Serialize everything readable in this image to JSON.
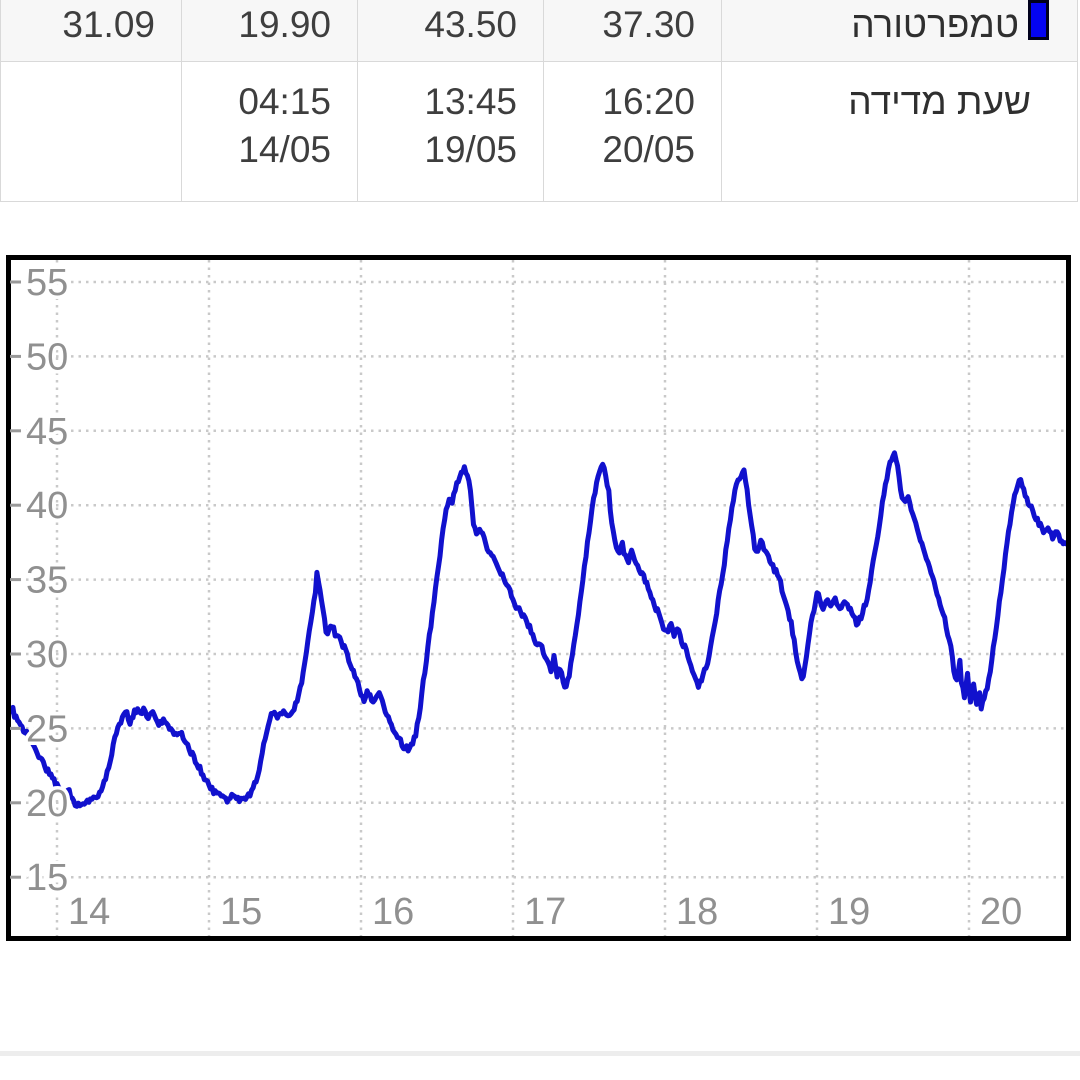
{
  "table": {
    "temperature_row": {
      "label": "טמפרטורה",
      "legend_color": "#0404f2",
      "values": [
        "31.09",
        "19.90",
        "43.50",
        "37.30"
      ]
    },
    "time_row": {
      "label": "שעת מדידה",
      "entries": [
        {
          "time": "",
          "date": ""
        },
        {
          "time": "04:15",
          "date": "14/05"
        },
        {
          "time": "13:45",
          "date": "19/05"
        },
        {
          "time": "16:20",
          "date": "20/05"
        }
      ]
    }
  },
  "chart_data": {
    "type": "line",
    "title": "",
    "xlabel": "",
    "ylabel": "",
    "x_axis": {
      "ticks": [
        14,
        15,
        16,
        17,
        18,
        19,
        20
      ],
      "unit": "day of May",
      "domain": [
        13.67,
        20.66
      ]
    },
    "y_axis": {
      "ticks": [
        15,
        20,
        25,
        30,
        35,
        40,
        45,
        50,
        55
      ],
      "domain": [
        11.0,
        56.6
      ]
    },
    "grid": "dotted",
    "grid_color": "#c9c9c9",
    "axis_label_color": "#909090",
    "border_color": "#000000",
    "series": [
      {
        "name": "טמפרטורה",
        "color": "#1111cd",
        "width": 5,
        "noise": 0.2,
        "points": [
          [
            13.68,
            25.7
          ],
          [
            13.69,
            26.3
          ],
          [
            13.71,
            26.4
          ],
          [
            13.72,
            25.8
          ],
          [
            13.74,
            25.5
          ],
          [
            13.76,
            25.2
          ],
          [
            13.79,
            24.8
          ],
          [
            13.82,
            24.4
          ],
          [
            13.85,
            23.8
          ],
          [
            13.88,
            23.2
          ],
          [
            13.91,
            22.7
          ],
          [
            13.94,
            22.1
          ],
          [
            13.97,
            21.6
          ],
          [
            14.0,
            21.2
          ],
          [
            14.03,
            20.8
          ],
          [
            14.06,
            20.5
          ],
          [
            14.08,
            20.9
          ],
          [
            14.1,
            20.2
          ],
          [
            14.13,
            19.9
          ],
          [
            14.16,
            19.9
          ],
          [
            14.18,
            19.85
          ],
          [
            14.2,
            20.0
          ],
          [
            14.23,
            20.2
          ],
          [
            14.26,
            20.4
          ],
          [
            14.29,
            20.9
          ],
          [
            14.32,
            21.7
          ],
          [
            14.35,
            22.9
          ],
          [
            14.38,
            24.3
          ],
          [
            14.41,
            25.2
          ],
          [
            14.44,
            25.8
          ],
          [
            14.46,
            26.0
          ],
          [
            14.48,
            25.3
          ],
          [
            14.5,
            25.9
          ],
          [
            14.53,
            26.4
          ],
          [
            14.55,
            26.0
          ],
          [
            14.57,
            26.2
          ],
          [
            14.6,
            25.8
          ],
          [
            14.63,
            26.0
          ],
          [
            14.65,
            25.5
          ],
          [
            14.68,
            25.3
          ],
          [
            14.7,
            25.6
          ],
          [
            14.73,
            25.1
          ],
          [
            14.76,
            24.8
          ],
          [
            14.79,
            24.5
          ],
          [
            14.82,
            24.8
          ],
          [
            14.84,
            24.0
          ],
          [
            14.87,
            23.6
          ],
          [
            14.9,
            23.1
          ],
          [
            14.93,
            22.5
          ],
          [
            14.96,
            21.9
          ],
          [
            14.99,
            21.3
          ],
          [
            15.02,
            20.9
          ],
          [
            15.05,
            20.6
          ],
          [
            15.08,
            20.4
          ],
          [
            15.11,
            20.2
          ],
          [
            15.14,
            20.3
          ],
          [
            15.16,
            20.5
          ],
          [
            15.19,
            20.3
          ],
          [
            15.22,
            20.2
          ],
          [
            15.25,
            20.3
          ],
          [
            15.28,
            20.7
          ],
          [
            15.31,
            21.5
          ],
          [
            15.34,
            22.8
          ],
          [
            15.36,
            24.0
          ],
          [
            15.39,
            25.2
          ],
          [
            15.41,
            25.9
          ],
          [
            15.43,
            26.2
          ],
          [
            15.45,
            25.7
          ],
          [
            15.47,
            25.9
          ],
          [
            15.5,
            26.2
          ],
          [
            15.52,
            26.0
          ],
          [
            15.55,
            26.1
          ],
          [
            15.57,
            26.6
          ],
          [
            15.6,
            27.6
          ],
          [
            15.62,
            28.7
          ],
          [
            15.64,
            30.0
          ],
          [
            15.66,
            31.4
          ],
          [
            15.68,
            32.9
          ],
          [
            15.7,
            34.3
          ],
          [
            15.71,
            35.5
          ],
          [
            15.72,
            34.8
          ],
          [
            15.74,
            33.6
          ],
          [
            15.76,
            32.3
          ],
          [
            15.77,
            31.3
          ],
          [
            15.79,
            31.6
          ],
          [
            15.81,
            32.0
          ],
          [
            15.83,
            31.4
          ],
          [
            15.86,
            31.1
          ],
          [
            15.89,
            30.4
          ],
          [
            15.92,
            29.6
          ],
          [
            15.95,
            28.8
          ],
          [
            15.98,
            27.9
          ],
          [
            16.0,
            27.2
          ],
          [
            16.02,
            26.9
          ],
          [
            16.04,
            27.5
          ],
          [
            16.06,
            27.1
          ],
          [
            16.08,
            26.6
          ],
          [
            16.1,
            27.3
          ],
          [
            16.12,
            27.6
          ],
          [
            16.14,
            26.7
          ],
          [
            16.17,
            25.9
          ],
          [
            16.2,
            25.2
          ],
          [
            16.23,
            24.6
          ],
          [
            16.26,
            24.1
          ],
          [
            16.29,
            23.7
          ],
          [
            16.32,
            23.6
          ],
          [
            16.34,
            24.0
          ],
          [
            16.36,
            24.6
          ],
          [
            16.38,
            25.8
          ],
          [
            16.4,
            27.3
          ],
          [
            16.42,
            28.9
          ],
          [
            16.44,
            30.4
          ],
          [
            16.46,
            31.9
          ],
          [
            16.48,
            33.5
          ],
          [
            16.5,
            35.1
          ],
          [
            16.52,
            36.7
          ],
          [
            16.54,
            38.3
          ],
          [
            16.56,
            39.7
          ],
          [
            16.58,
            40.6
          ],
          [
            16.6,
            40.2
          ],
          [
            16.62,
            41.0
          ],
          [
            16.64,
            41.7
          ],
          [
            16.66,
            42.1
          ],
          [
            16.68,
            42.4
          ],
          [
            16.69,
            42.2
          ],
          [
            16.71,
            41.6
          ],
          [
            16.73,
            40.0
          ],
          [
            16.74,
            38.6
          ],
          [
            16.76,
            38.1
          ],
          [
            16.78,
            38.5
          ],
          [
            16.8,
            38.0
          ],
          [
            16.82,
            37.4
          ],
          [
            16.85,
            36.8
          ],
          [
            16.88,
            36.4
          ],
          [
            16.9,
            36.0
          ],
          [
            16.93,
            35.3
          ],
          [
            16.96,
            34.6
          ],
          [
            16.99,
            33.9
          ],
          [
            17.02,
            33.2
          ],
          [
            17.05,
            32.8
          ],
          [
            17.08,
            32.4
          ],
          [
            17.11,
            31.8
          ],
          [
            17.14,
            31.1
          ],
          [
            17.16,
            30.5
          ],
          [
            17.18,
            30.8
          ],
          [
            17.2,
            30.0
          ],
          [
            17.23,
            29.3
          ],
          [
            17.25,
            28.9
          ],
          [
            17.27,
            29.9
          ],
          [
            17.29,
            28.5
          ],
          [
            17.31,
            29.1
          ],
          [
            17.33,
            28.1
          ],
          [
            17.35,
            27.8
          ],
          [
            17.37,
            28.6
          ],
          [
            17.39,
            29.8
          ],
          [
            17.41,
            31.2
          ],
          [
            17.43,
            32.7
          ],
          [
            17.45,
            34.2
          ],
          [
            17.47,
            35.8
          ],
          [
            17.49,
            37.4
          ],
          [
            17.51,
            39.0
          ],
          [
            17.53,
            40.4
          ],
          [
            17.55,
            41.5
          ],
          [
            17.57,
            42.2
          ],
          [
            17.58,
            42.6
          ],
          [
            17.6,
            42.5
          ],
          [
            17.61,
            42.0
          ],
          [
            17.63,
            40.8
          ],
          [
            17.64,
            39.5
          ],
          [
            17.66,
            38.3
          ],
          [
            17.68,
            37.2
          ],
          [
            17.7,
            36.8
          ],
          [
            17.72,
            37.5
          ],
          [
            17.73,
            36.6
          ],
          [
            17.76,
            36.3
          ],
          [
            17.78,
            36.9
          ],
          [
            17.8,
            36.4
          ],
          [
            17.82,
            36.0
          ],
          [
            17.85,
            35.4
          ],
          [
            17.88,
            34.7
          ],
          [
            17.91,
            33.9
          ],
          [
            17.94,
            33.1
          ],
          [
            17.97,
            32.4
          ],
          [
            17.99,
            31.8
          ],
          [
            18.02,
            31.4
          ],
          [
            18.04,
            32.1
          ],
          [
            18.06,
            31.3
          ],
          [
            18.08,
            31.7
          ],
          [
            18.11,
            30.9
          ],
          [
            18.14,
            30.2
          ],
          [
            18.17,
            29.3
          ],
          [
            18.2,
            28.4
          ],
          [
            18.22,
            27.9
          ],
          [
            18.25,
            28.5
          ],
          [
            18.28,
            29.4
          ],
          [
            18.3,
            30.6
          ],
          [
            18.33,
            32.1
          ],
          [
            18.35,
            33.6
          ],
          [
            18.38,
            35.3
          ],
          [
            18.4,
            36.9
          ],
          [
            18.42,
            38.4
          ],
          [
            18.44,
            39.8
          ],
          [
            18.46,
            40.9
          ],
          [
            18.48,
            41.7
          ],
          [
            18.5,
            42.1
          ],
          [
            18.52,
            42.3
          ],
          [
            18.53,
            41.6
          ],
          [
            18.55,
            40.2
          ],
          [
            18.57,
            38.6
          ],
          [
            18.59,
            37.2
          ],
          [
            18.61,
            36.9
          ],
          [
            18.63,
            37.7
          ],
          [
            18.65,
            37.1
          ],
          [
            18.67,
            36.6
          ],
          [
            18.69,
            36.2
          ],
          [
            18.71,
            35.9
          ],
          [
            18.73,
            35.5
          ],
          [
            18.75,
            35.1
          ],
          [
            18.77,
            34.4
          ],
          [
            18.8,
            33.4
          ],
          [
            18.83,
            32.0
          ],
          [
            18.86,
            30.3
          ],
          [
            18.88,
            29.0
          ],
          [
            18.9,
            28.2
          ],
          [
            18.92,
            29.0
          ],
          [
            18.94,
            30.5
          ],
          [
            18.96,
            31.9
          ],
          [
            18.98,
            33.0
          ],
          [
            19.0,
            34.2
          ],
          [
            19.02,
            33.5
          ],
          [
            19.04,
            33.1
          ],
          [
            19.06,
            33.7
          ],
          [
            19.09,
            33.2
          ],
          [
            19.12,
            33.6
          ],
          [
            19.15,
            33.1
          ],
          [
            19.18,
            33.5
          ],
          [
            19.21,
            33.2
          ],
          [
            19.24,
            32.7
          ],
          [
            19.26,
            32.1
          ],
          [
            19.29,
            32.5
          ],
          [
            19.32,
            33.4
          ],
          [
            19.35,
            34.8
          ],
          [
            19.37,
            36.3
          ],
          [
            19.4,
            38.0
          ],
          [
            19.42,
            39.5
          ],
          [
            19.44,
            40.8
          ],
          [
            19.46,
            41.9
          ],
          [
            19.48,
            42.8
          ],
          [
            19.5,
            43.3
          ],
          [
            19.51,
            43.45
          ],
          [
            19.53,
            42.8
          ],
          [
            19.54,
            41.7
          ],
          [
            19.56,
            40.5
          ],
          [
            19.58,
            40.2
          ],
          [
            19.6,
            40.5
          ],
          [
            19.62,
            39.8
          ],
          [
            19.64,
            39.0
          ],
          [
            19.66,
            38.3
          ],
          [
            19.68,
            37.7
          ],
          [
            19.7,
            37.0
          ],
          [
            19.72,
            36.3
          ],
          [
            19.75,
            35.5
          ],
          [
            19.77,
            34.8
          ],
          [
            19.79,
            34.1
          ],
          [
            19.81,
            33.3
          ],
          [
            19.84,
            32.3
          ],
          [
            19.86,
            31.2
          ],
          [
            19.88,
            30.4
          ],
          [
            19.9,
            29.0
          ],
          [
            19.92,
            28.1
          ],
          [
            19.94,
            29.4
          ],
          [
            19.95,
            28.2
          ],
          [
            19.97,
            27.2
          ],
          [
            19.99,
            28.7
          ],
          [
            20.01,
            26.7
          ],
          [
            20.03,
            28.1
          ],
          [
            20.05,
            26.5
          ],
          [
            20.07,
            27.5
          ],
          [
            20.08,
            26.4
          ],
          [
            20.1,
            27.0
          ],
          [
            20.12,
            27.8
          ],
          [
            20.14,
            29.0
          ],
          [
            20.16,
            30.4
          ],
          [
            20.18,
            31.9
          ],
          [
            20.2,
            33.4
          ],
          [
            20.22,
            35.0
          ],
          [
            20.24,
            36.6
          ],
          [
            20.26,
            38.1
          ],
          [
            20.28,
            39.4
          ],
          [
            20.3,
            40.5
          ],
          [
            20.32,
            41.2
          ],
          [
            20.33,
            41.8
          ],
          [
            20.35,
            41.4
          ],
          [
            20.37,
            40.7
          ],
          [
            20.4,
            40.0
          ],
          [
            20.43,
            39.4
          ],
          [
            20.46,
            38.8
          ],
          [
            20.49,
            38.3
          ],
          [
            20.52,
            38.5
          ],
          [
            20.55,
            37.9
          ],
          [
            20.58,
            38.1
          ],
          [
            20.61,
            37.6
          ],
          [
            20.64,
            37.5
          ],
          [
            20.66,
            37.3
          ]
        ]
      }
    ]
  }
}
